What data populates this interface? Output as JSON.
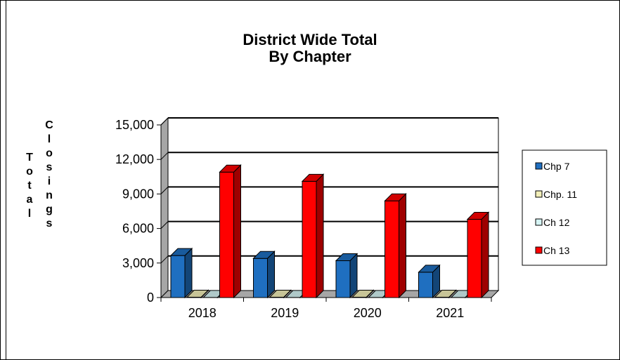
{
  "chart_data": {
    "type": "bar",
    "title": [
      "District Wide Total",
      "By Chapter"
    ],
    "ylabel_words": [
      "Total",
      "Closings"
    ],
    "categories": [
      "2018",
      "2019",
      "2020",
      "2021"
    ],
    "yticks": [
      "0",
      "3,000",
      "6,000",
      "9,000",
      "12,000",
      "15,000"
    ],
    "ylim": [
      0,
      15000
    ],
    "series": [
      {
        "name": "Chp 7",
        "color": "#1F6FC0",
        "values": [
          3650,
          3400,
          3200,
          2200
        ]
      },
      {
        "name": "Chp. 11",
        "color": "#F3EFB8",
        "values": [
          30,
          30,
          30,
          30
        ]
      },
      {
        "name": "Ch 12",
        "color": "#D6F5F5",
        "values": [
          10,
          10,
          10,
          10
        ]
      },
      {
        "name": "Ch 13",
        "color": "#FF0000",
        "values": [
          10900,
          10100,
          8400,
          6800
        ]
      }
    ],
    "grid": true,
    "legend": "right"
  }
}
